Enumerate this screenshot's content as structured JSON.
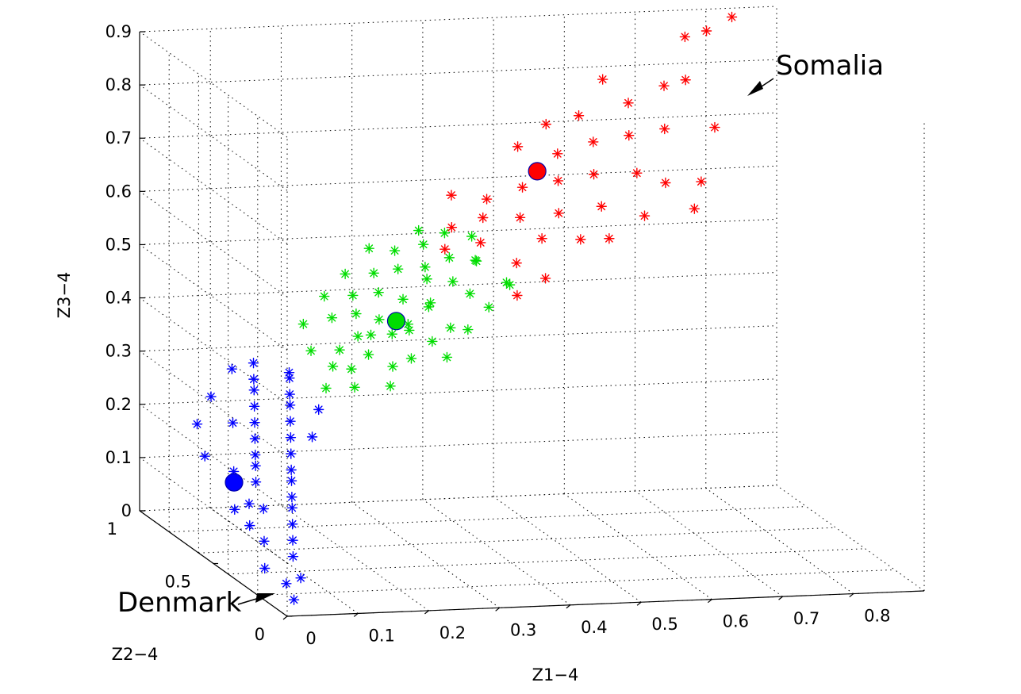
{
  "chart_data": {
    "type": "scatter",
    "projection": "3d",
    "grid": true,
    "axes": {
      "x": {
        "label": "Z1−4",
        "range": [
          0,
          0.9
        ],
        "ticks": [
          "0",
          "0.1",
          "0.2",
          "0.3",
          "0.4",
          "0.5",
          "0.6",
          "0.7",
          "0.8"
        ]
      },
      "y": {
        "label": "Z2−4",
        "range": [
          0,
          1
        ],
        "ticks": [
          "0",
          "0.5",
          "1"
        ]
      },
      "z": {
        "label": "Z3−4",
        "range": [
          0,
          0.9
        ],
        "ticks": [
          "0",
          "0.1",
          "0.2",
          "0.3",
          "0.4",
          "0.5",
          "0.6",
          "0.7",
          "0.8",
          "0.9"
        ]
      }
    },
    "annotations": [
      {
        "text": "Somalia",
        "color": "#000000"
      },
      {
        "text": "Denmark",
        "color": "#000000"
      }
    ],
    "series": [
      {
        "color": "#0000ff",
        "marker": "asterisk",
        "centroid": [
          0.05,
          0.6,
          0.13
        ],
        "points": [
          [
            0.02,
            0.05,
            0.02
          ],
          [
            0.03,
            0.15,
            0.03
          ],
          [
            0.04,
            0.1,
            0.05
          ],
          [
            0.01,
            0.2,
            0.05
          ],
          [
            0.05,
            0.2,
            0.07
          ],
          [
            0.03,
            0.3,
            0.08
          ],
          [
            0.06,
            0.25,
            0.09
          ],
          [
            0.02,
            0.35,
            0.1
          ],
          [
            0.07,
            0.3,
            0.11
          ],
          [
            0.05,
            0.4,
            0.12
          ],
          [
            0.08,
            0.35,
            0.13
          ],
          [
            0.04,
            0.45,
            0.12
          ],
          [
            0.09,
            0.4,
            0.14
          ],
          [
            0.06,
            0.5,
            0.15
          ],
          [
            0.1,
            0.45,
            0.16
          ],
          [
            0.07,
            0.55,
            0.17
          ],
          [
            0.11,
            0.5,
            0.17
          ],
          [
            0.08,
            0.6,
            0.18
          ],
          [
            0.12,
            0.55,
            0.19
          ],
          [
            0.09,
            0.65,
            0.2
          ],
          [
            0.13,
            0.6,
            0.21
          ],
          [
            0.1,
            0.7,
            0.22
          ],
          [
            0.14,
            0.65,
            0.23
          ],
          [
            0.11,
            0.75,
            0.24
          ],
          [
            0.15,
            0.7,
            0.25
          ],
          [
            0.12,
            0.8,
            0.26
          ],
          [
            0.16,
            0.75,
            0.26
          ],
          [
            0.13,
            0.85,
            0.27
          ],
          [
            0.17,
            0.8,
            0.28
          ],
          [
            0.14,
            0.9,
            0.29
          ],
          [
            0.18,
            0.85,
            0.28
          ],
          [
            0.03,
            0.5,
            0.1
          ],
          [
            0.06,
            0.65,
            0.14
          ],
          [
            0.09,
            0.8,
            0.2
          ],
          [
            0.12,
            0.95,
            0.27
          ],
          [
            0.04,
            0.75,
            0.15
          ],
          [
            0.08,
            0.9,
            0.23
          ],
          [
            0.15,
            0.55,
            0.22
          ],
          [
            0.18,
            0.65,
            0.25
          ],
          [
            0.05,
            0.85,
            0.19
          ]
        ]
      },
      {
        "color": "#00dd00",
        "marker": "asterisk",
        "centroid": [
          0.3,
          0.7,
          0.4
        ],
        "points": [
          [
            0.18,
            0.6,
            0.3
          ],
          [
            0.2,
            0.65,
            0.33
          ],
          [
            0.22,
            0.7,
            0.35
          ],
          [
            0.19,
            0.75,
            0.34
          ],
          [
            0.24,
            0.6,
            0.36
          ],
          [
            0.26,
            0.68,
            0.38
          ],
          [
            0.23,
            0.8,
            0.39
          ],
          [
            0.28,
            0.72,
            0.4
          ],
          [
            0.3,
            0.62,
            0.41
          ],
          [
            0.27,
            0.85,
            0.42
          ],
          [
            0.32,
            0.75,
            0.43
          ],
          [
            0.34,
            0.66,
            0.44
          ],
          [
            0.31,
            0.9,
            0.45
          ],
          [
            0.36,
            0.78,
            0.46
          ],
          [
            0.38,
            0.7,
            0.47
          ],
          [
            0.35,
            0.95,
            0.48
          ],
          [
            0.4,
            0.82,
            0.49
          ],
          [
            0.42,
            0.74,
            0.5
          ],
          [
            0.39,
            0.98,
            0.51
          ],
          [
            0.44,
            0.86,
            0.52
          ],
          [
            0.21,
            0.55,
            0.31
          ],
          [
            0.25,
            0.5,
            0.32
          ],
          [
            0.29,
            0.55,
            0.36
          ],
          [
            0.33,
            0.5,
            0.37
          ],
          [
            0.37,
            0.55,
            0.41
          ],
          [
            0.41,
            0.6,
            0.44
          ],
          [
            0.45,
            0.65,
            0.47
          ],
          [
            0.24,
            0.9,
            0.41
          ],
          [
            0.28,
            0.95,
            0.44
          ],
          [
            0.32,
            0.98,
            0.48
          ],
          [
            0.2,
            0.85,
            0.37
          ],
          [
            0.26,
            0.78,
            0.4
          ],
          [
            0.3,
            0.82,
            0.43
          ],
          [
            0.34,
            0.88,
            0.46
          ],
          [
            0.38,
            0.9,
            0.5
          ],
          [
            0.22,
            0.62,
            0.33
          ],
          [
            0.29,
            0.68,
            0.38
          ],
          [
            0.35,
            0.72,
            0.42
          ],
          [
            0.43,
            0.78,
            0.49
          ],
          [
            0.46,
            0.72,
            0.46
          ],
          [
            0.27,
            0.58,
            0.34
          ],
          [
            0.31,
            0.66,
            0.39
          ],
          [
            0.36,
            0.62,
            0.4
          ],
          [
            0.4,
            0.68,
            0.45
          ],
          [
            0.25,
            0.72,
            0.37
          ],
          [
            0.33,
            0.6,
            0.38
          ],
          [
            0.37,
            0.84,
            0.47
          ],
          [
            0.41,
            0.9,
            0.52
          ]
        ]
      },
      {
        "color": "#ff0000",
        "marker": "asterisk",
        "centroid": [
          0.52,
          0.8,
          0.65
        ],
        "points": [
          [
            0.4,
            0.85,
            0.5
          ],
          [
            0.42,
            0.9,
            0.53
          ],
          [
            0.44,
            0.8,
            0.52
          ],
          [
            0.46,
            0.88,
            0.55
          ],
          [
            0.48,
            0.95,
            0.57
          ],
          [
            0.5,
            0.82,
            0.56
          ],
          [
            0.52,
            0.9,
            0.6
          ],
          [
            0.54,
            0.75,
            0.58
          ],
          [
            0.56,
            0.85,
            0.62
          ],
          [
            0.58,
            0.95,
            0.65
          ],
          [
            0.6,
            0.8,
            0.64
          ],
          [
            0.62,
            0.9,
            0.68
          ],
          [
            0.64,
            0.7,
            0.66
          ],
          [
            0.66,
            0.85,
            0.7
          ],
          [
            0.68,
            0.95,
            0.74
          ],
          [
            0.7,
            0.8,
            0.72
          ],
          [
            0.72,
            0.9,
            0.78
          ],
          [
            0.74,
            0.85,
            0.8
          ],
          [
            0.76,
            0.95,
            0.86
          ],
          [
            0.78,
            0.9,
            0.88
          ],
          [
            0.8,
            0.98,
            0.95
          ],
          [
            0.82,
            0.92,
            0.9
          ],
          [
            0.84,
            0.98,
            1.0
          ],
          [
            0.47,
            0.7,
            0.5
          ],
          [
            0.51,
            0.72,
            0.54
          ],
          [
            0.55,
            0.65,
            0.55
          ],
          [
            0.59,
            0.7,
            0.6
          ],
          [
            0.63,
            0.6,
            0.6
          ],
          [
            0.67,
            0.65,
            0.65
          ],
          [
            0.71,
            0.6,
            0.66
          ],
          [
            0.75,
            0.7,
            0.74
          ],
          [
            0.53,
            0.98,
            0.66
          ],
          [
            0.57,
            0.98,
            0.7
          ],
          [
            0.61,
            0.95,
            0.72
          ],
          [
            0.45,
            0.6,
            0.46
          ],
          [
            0.49,
            0.6,
            0.49
          ],
          [
            0.58,
            0.6,
            0.56
          ],
          [
            0.69,
            0.55,
            0.62
          ],
          [
            0.43,
            0.95,
            0.58
          ],
          [
            0.65,
            0.98,
            0.78
          ]
        ]
      }
    ]
  }
}
